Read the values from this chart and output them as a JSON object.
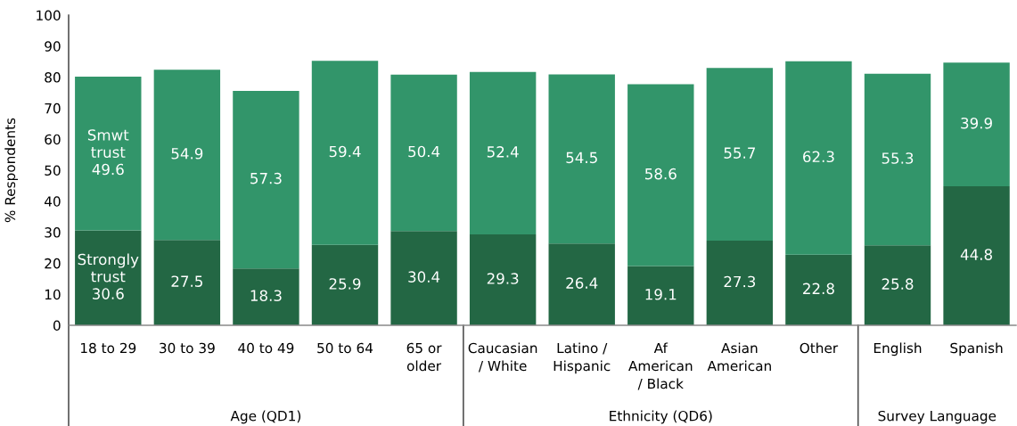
{
  "chart_data": {
    "type": "bar",
    "stacked": true,
    "ylabel": "% Respondents",
    "categories": [
      "18 to 29",
      "30 to 39",
      "40 to 49",
      "50 to 64",
      "65 or\nolder",
      "Caucasian\n/ White",
      "Latino /\nHispanic",
      "Af\nAmerican\n/ Black",
      "Asian\nAmerican",
      "Other",
      "English",
      "Spanish"
    ],
    "series": [
      {
        "name": "Strongly trust",
        "color": "#236744",
        "values": [
          30.6,
          27.5,
          18.3,
          25.9,
          30.4,
          29.3,
          26.4,
          19.1,
          27.3,
          22.8,
          25.8,
          44.8
        ]
      },
      {
        "name": "Smwt trust",
        "color": "#32956a",
        "values": [
          49.6,
          54.9,
          57.3,
          59.4,
          50.4,
          52.4,
          54.5,
          58.6,
          55.7,
          62.3,
          55.3,
          39.9
        ]
      }
    ],
    "ylim": [
      0,
      100
    ],
    "yticks": [
      0,
      10,
      20,
      30,
      40,
      50,
      60,
      70,
      80,
      90,
      100
    ],
    "data_labels": true,
    "annotations": [
      "Age (QD1)",
      "Ethnicity (QD6)",
      "Survey Language"
    ]
  }
}
